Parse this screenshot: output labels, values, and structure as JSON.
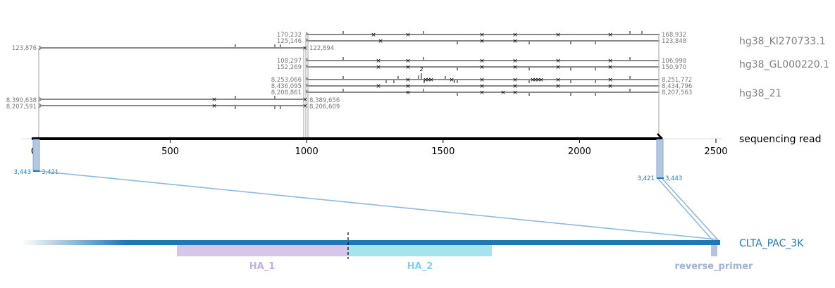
{
  "axis": {
    "ticks": [
      0,
      500,
      1000,
      1500,
      2000,
      2500
    ],
    "tick_labels": [
      "0",
      "500",
      "1000",
      "1500",
      "2000",
      "2500"
    ],
    "range": [
      0,
      2500
    ]
  },
  "labels": {
    "contig1": "hg38_KI270733.1",
    "contig2": "hg38_GL000220.1",
    "chr21": "hg38_21",
    "read": "sequencing read",
    "target": "CLTA_PAC_3K"
  },
  "coords": {
    "top_left": "123,876",
    "r1_start": "170,232",
    "r1_end": "168,932",
    "r2_start": "125,146",
    "r2_end": "123,848",
    "lk_end": "122,894",
    "r3_start": "108,297",
    "r3_end": "106,998",
    "r4_start": "152,269",
    "r4_end": "150,970",
    "r5_start": "8,253,066",
    "r5_end": "8,251,772",
    "r6_start": "8,436,095",
    "r6_end": "8,434,796",
    "r7_start": "8,208,861",
    "r7_end": "8,207,563",
    "l1_start": "8,390,638",
    "l1_end": "8,389,656",
    "l2_start": "8,207,591",
    "l2_end": "8,206,609",
    "left_blue_a": "3,443",
    "left_blue_b": "3,421",
    "right_blue_a": "3,421",
    "right_blue_b": "3,443"
  },
  "marker_label": "2",
  "features": {
    "ha1": "HA_1",
    "ha2": "HA_2",
    "reverse_primer": "reverse_primer"
  },
  "colors": {
    "alignment": "#888888",
    "read": "#000000",
    "target": "#1f77b4",
    "ha1": "#d5c6ea",
    "ha2": "#a6e4ed",
    "ha1_text": "#c5aee6",
    "ha2_text": "#7fd3ea",
    "primer": "#b7c3de",
    "primer_text": "#9fb2d8",
    "label_gray": "#808080",
    "blue_box": "#b3c6e2"
  }
}
